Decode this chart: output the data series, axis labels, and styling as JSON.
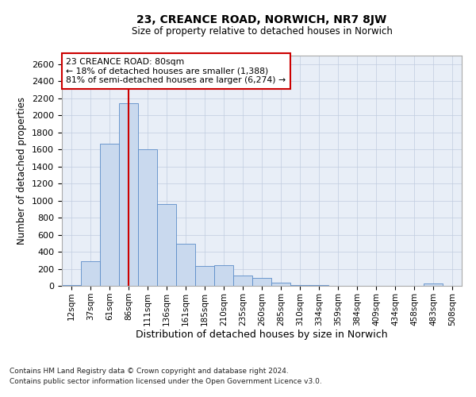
{
  "title": "23, CREANCE ROAD, NORWICH, NR7 8JW",
  "subtitle": "Size of property relative to detached houses in Norwich",
  "xlabel": "Distribution of detached houses by size in Norwich",
  "ylabel": "Number of detached properties",
  "bar_color": "#c9d9ee",
  "bar_edge_color": "#5b8cc8",
  "vline_color": "#cc0000",
  "annotation_title": "23 CREANCE ROAD: 80sqm",
  "annotation_line1": "← 18% of detached houses are smaller (1,388)",
  "annotation_line2": "81% of semi-detached houses are larger (6,274) →",
  "annotation_box_color": "#cc0000",
  "categories": [
    "12sqm",
    "37sqm",
    "61sqm",
    "86sqm",
    "111sqm",
    "136sqm",
    "161sqm",
    "185sqm",
    "210sqm",
    "235sqm",
    "260sqm",
    "285sqm",
    "310sqm",
    "334sqm",
    "359sqm",
    "384sqm",
    "409sqm",
    "434sqm",
    "458sqm",
    "483sqm",
    "508sqm"
  ],
  "bar_heights": [
    10,
    290,
    1670,
    2140,
    1600,
    960,
    490,
    230,
    240,
    125,
    90,
    35,
    8,
    5,
    2,
    0,
    0,
    0,
    0,
    25,
    0
  ],
  "vline_bar_index": 3,
  "ylim": [
    0,
    2700
  ],
  "yticks": [
    0,
    200,
    400,
    600,
    800,
    1000,
    1200,
    1400,
    1600,
    1800,
    2000,
    2200,
    2400,
    2600
  ],
  "footer_line1": "Contains HM Land Registry data © Crown copyright and database right 2024.",
  "footer_line2": "Contains public sector information licensed under the Open Government Licence v3.0."
}
